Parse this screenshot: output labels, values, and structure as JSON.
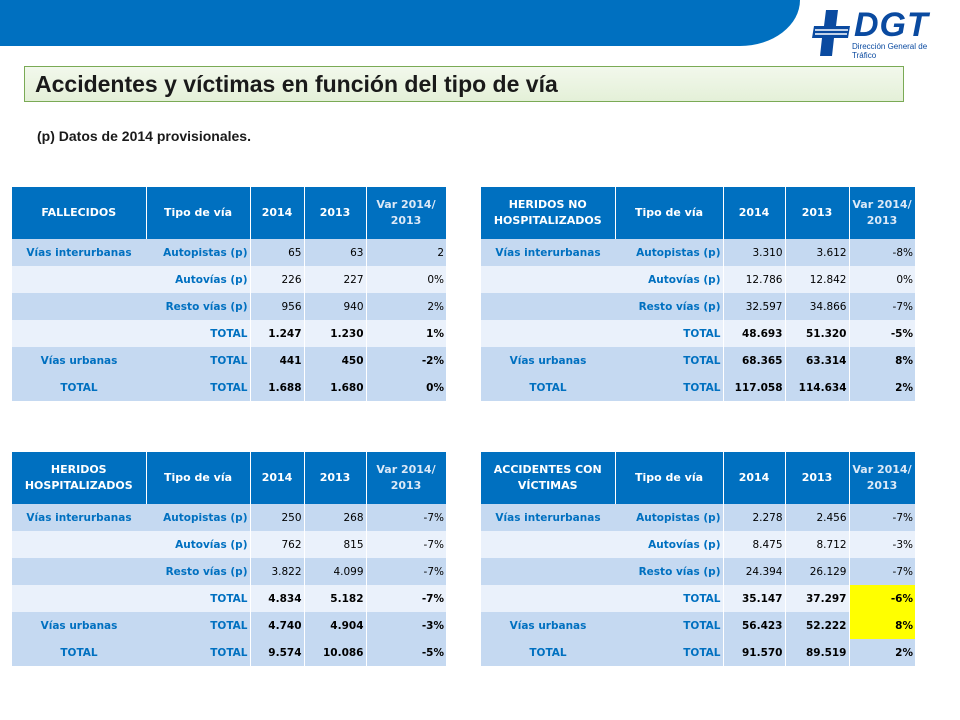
{
  "header": {
    "logo_text": "DGT",
    "logo_subtitle": "Dirección General de Tráfico"
  },
  "title": "Accidentes y víctimas en función del tipo de vía",
  "note": "(p) Datos de 2014 provisionales.",
  "colors": {
    "bar": "#0070c0",
    "title_border": "#7aaa55",
    "highlight": "#ffff00"
  },
  "tables": {
    "fallecidos": {
      "headers": [
        "FALLECIDOS",
        "Tipo de vía",
        "2014",
        "2013",
        "Var 2014/ 2013"
      ],
      "rows": [
        [
          "Vías interurbanas",
          "Autopistas (p)",
          "65",
          "63",
          "2"
        ],
        [
          "",
          "Autovías (p)",
          "226",
          "227",
          "0%"
        ],
        [
          "",
          "Resto vías (p)",
          "956",
          "940",
          "2%"
        ],
        [
          "",
          "TOTAL",
          "1.247",
          "1.230",
          "1%"
        ],
        [
          "Vías urbanas",
          "TOTAL",
          "441",
          "450",
          "-2%"
        ],
        [
          "TOTAL",
          "TOTAL",
          "1.688",
          "1.680",
          "0%"
        ]
      ]
    },
    "heridos_no_hosp": {
      "headers": [
        "HERIDOS NO HOSPITALIZADOS",
        "Tipo de vía",
        "2014",
        "2013",
        "Var 2014/ 2013"
      ],
      "rows": [
        [
          "Vías interurbanas",
          "Autopistas (p)",
          "3.310",
          "3.612",
          "-8%"
        ],
        [
          "",
          "Autovías (p)",
          "12.786",
          "12.842",
          "0%"
        ],
        [
          "",
          "Resto vías (p)",
          "32.597",
          "34.866",
          "-7%"
        ],
        [
          "",
          "TOTAL",
          "48.693",
          "51.320",
          "-5%"
        ],
        [
          "Vías urbanas",
          "TOTAL",
          "68.365",
          "63.314",
          "8%"
        ],
        [
          "TOTAL",
          "TOTAL",
          "117.058",
          "114.634",
          "2%"
        ]
      ]
    },
    "heridos_hosp": {
      "headers": [
        "HERIDOS HOSPITALIZADOS",
        "Tipo de vía",
        "2014",
        "2013",
        "Var 2014/ 2013"
      ],
      "rows": [
        [
          "Vías interurbanas",
          "Autopistas (p)",
          "250",
          "268",
          "-7%"
        ],
        [
          "",
          "Autovías (p)",
          "762",
          "815",
          "-7%"
        ],
        [
          "",
          "Resto vías (p)",
          "3.822",
          "4.099",
          "-7%"
        ],
        [
          "",
          "TOTAL",
          "4.834",
          "5.182",
          "-7%"
        ],
        [
          "Vías urbanas",
          "TOTAL",
          "4.740",
          "4.904",
          "-3%"
        ],
        [
          "TOTAL",
          "TOTAL",
          "9.574",
          "10.086",
          "-5%"
        ]
      ]
    },
    "accidentes": {
      "headers": [
        "ACCIDENTES CON VÍCTIMAS",
        "Tipo de vía",
        "2014",
        "2013",
        "Var 2014/ 2013"
      ],
      "rows": [
        [
          "Vías interurbanas",
          "Autopistas (p)",
          "2.278",
          "2.456",
          "-7%"
        ],
        [
          "",
          "Autovías (p)",
          "8.475",
          "8.712",
          "-3%"
        ],
        [
          "",
          "Resto vías (p)",
          "24.394",
          "26.129",
          "-7%"
        ],
        [
          "",
          "TOTAL",
          "35.147",
          "37.297",
          "-6%"
        ],
        [
          "Vías urbanas",
          "TOTAL",
          "56.423",
          "52.222",
          "8%"
        ],
        [
          "TOTAL",
          "TOTAL",
          "91.570",
          "89.519",
          "2%"
        ]
      ]
    }
  }
}
